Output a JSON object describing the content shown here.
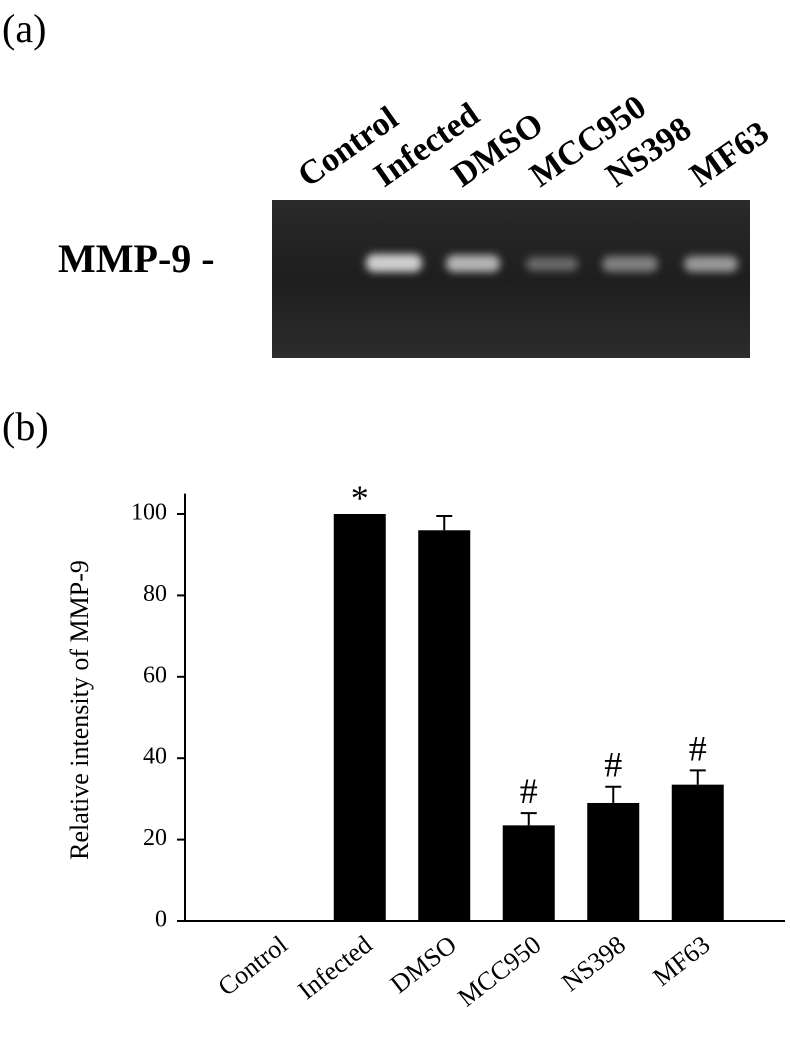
{
  "panel_a": {
    "label": "(a)",
    "row_label": "MMP-9 -",
    "lanes": [
      "Control",
      "Infected",
      "DMSO",
      "MCC950",
      "NS398",
      "MF63"
    ]
  },
  "chart_data": {
    "type": "bar",
    "panel_label": "(b)",
    "ylabel": "Relative intensity of MMP-9",
    "categories": [
      "Control",
      "Infected",
      "DMSO",
      "MCC950",
      "NS398",
      "MF63"
    ],
    "values": [
      0,
      100,
      96,
      23.5,
      29,
      33.5
    ],
    "errors": [
      0,
      0,
      3.5,
      3,
      4,
      3.5
    ],
    "markers": [
      null,
      "*",
      null,
      "#",
      "#",
      "#"
    ],
    "color": "#000000",
    "ylim": [
      0,
      105
    ],
    "yticks": [
      0,
      20,
      40,
      60,
      80,
      100
    ],
    "grid": false
  }
}
